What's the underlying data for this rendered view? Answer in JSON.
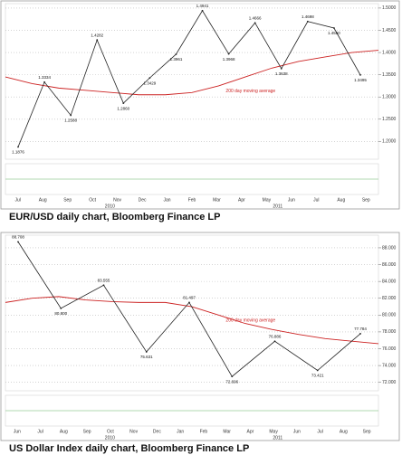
{
  "chart_data": [
    {
      "type": "line",
      "caption": "EUR/USD daily chart, Bloomberg Finance LP",
      "x_axis_labels": [
        "Jul",
        "Aug",
        "Sep",
        "Oct",
        "Nov",
        "Dec",
        "Jan",
        "Feb",
        "Mar",
        "Apr",
        "May",
        "Jun",
        "Jul",
        "Aug",
        "Sep"
      ],
      "year_labels": [
        "2010",
        "2011"
      ],
      "price": {
        "color": "#222222",
        "values": [
          1.1876,
          1.3334,
          1.2588,
          1.4282,
          1.286,
          1.3429,
          1.3961,
          1.4941,
          1.3968,
          1.4666,
          1.3638,
          1.4698,
          1.455,
          1.3495
        ],
        "value_labels": [
          "1.1876",
          "1.3334",
          "1.2588",
          "1.4282",
          "1.2860",
          "1.3429",
          "1.3961",
          "1.4941",
          "1.3968",
          "1.4666",
          "1.3638",
          "1.4698",
          "1.4550",
          "1.3495"
        ]
      },
      "moving_average": {
        "name": "200 day moving average",
        "color": "#cc2222",
        "values": [
          1.345,
          1.33,
          1.32,
          1.315,
          1.31,
          1.305,
          1.305,
          1.31,
          1.325,
          1.345,
          1.365,
          1.38,
          1.39,
          1.4,
          1.405
        ]
      },
      "ylim": [
        1.16,
        1.51
      ],
      "yticks": [
        {
          "value": 1.2,
          "label": "1.2000"
        },
        {
          "value": 1.25,
          "label": "1.2500"
        },
        {
          "value": 1.3,
          "label": "1.3000"
        },
        {
          "value": 1.35,
          "label": "1.3500"
        },
        {
          "value": 1.4,
          "label": "1.4000"
        },
        {
          "value": 1.45,
          "label": "1.4500"
        },
        {
          "value": 1.5,
          "label": "1.5000"
        }
      ],
      "grid": true
    },
    {
      "type": "line",
      "caption": "US Dollar Index daily chart, Bloomberg Finance LP",
      "x_axis_labels": [
        "Jun",
        "Jul",
        "Aug",
        "Sep",
        "Oct",
        "Nov",
        "Dec",
        "Jan",
        "Feb",
        "Mar",
        "Apr",
        "May",
        "Jun",
        "Jul",
        "Aug",
        "Sep"
      ],
      "year_labels": [
        "2010",
        "2011"
      ],
      "price": {
        "color": "#222222",
        "values": [
          88.708,
          80.8,
          83.555,
          75.631,
          81.497,
          72.696,
          76.886,
          73.421,
          77.784
        ],
        "value_labels": [
          "88.708",
          "80.800",
          "83.555",
          "75.631",
          "81.497",
          "72.696",
          "76.886",
          "73.421",
          "77.784"
        ]
      },
      "moving_average": {
        "name": "200 day moving average",
        "color": "#cc2222",
        "values": [
          81.5,
          82.0,
          82.2,
          81.8,
          81.6,
          81.5,
          81.5,
          81.0,
          80.0,
          79.0,
          78.3,
          77.7,
          77.2,
          76.9,
          76.6
        ]
      },
      "ylim": [
        71,
        89.5
      ],
      "yticks": [
        {
          "value": 72,
          "label": "72.000"
        },
        {
          "value": 74,
          "label": "74.000"
        },
        {
          "value": 76,
          "label": "76.000"
        },
        {
          "value": 78,
          "label": "78.000"
        },
        {
          "value": 80,
          "label": "80.000"
        },
        {
          "value": 82,
          "label": "82.000"
        },
        {
          "value": 84,
          "label": "84.000"
        },
        {
          "value": 86,
          "label": "86.000"
        },
        {
          "value": 88,
          "label": "88.000"
        }
      ],
      "grid": true
    }
  ]
}
